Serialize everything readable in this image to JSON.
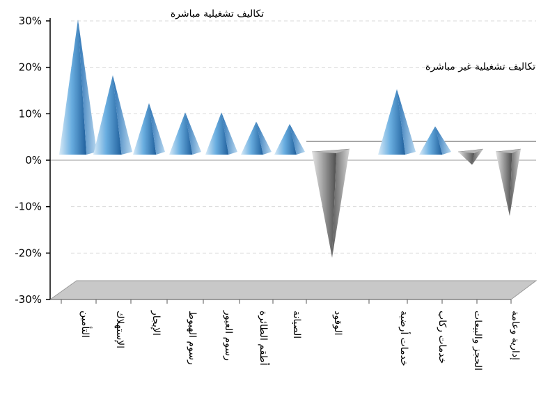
{
  "chart_data": {
    "type": "bar",
    "style": "3d-cone",
    "categories": [
      "التأمين",
      "الإستهلاك",
      "الإيجار",
      "رسوم الهبوط",
      "رسوم العبور",
      "أطقم الطائرة",
      "الصيانة",
      "الوقود",
      "خدمات أرضية",
      "خدمات ركاب",
      "الحجز والبيعات",
      "إدارية وعامة"
    ],
    "values": [
      30,
      18,
      12,
      10,
      10,
      8,
      7.5,
      -21,
      15,
      7,
      -1,
      -12
    ],
    "ylim": [
      -30,
      30
    ],
    "yticks": [
      "30%",
      "20%",
      "10%",
      "0%",
      "-10%",
      "-20%",
      "-30%"
    ],
    "annotations": [
      "تكاليف تشغيلية مباشرة",
      "تكاليف تشغيلية غير مباشرة"
    ],
    "grid": true,
    "colors": {
      "positive": "#3f8fcf",
      "negative": "#8a8a8a",
      "floor": "#c8c8c8"
    }
  }
}
